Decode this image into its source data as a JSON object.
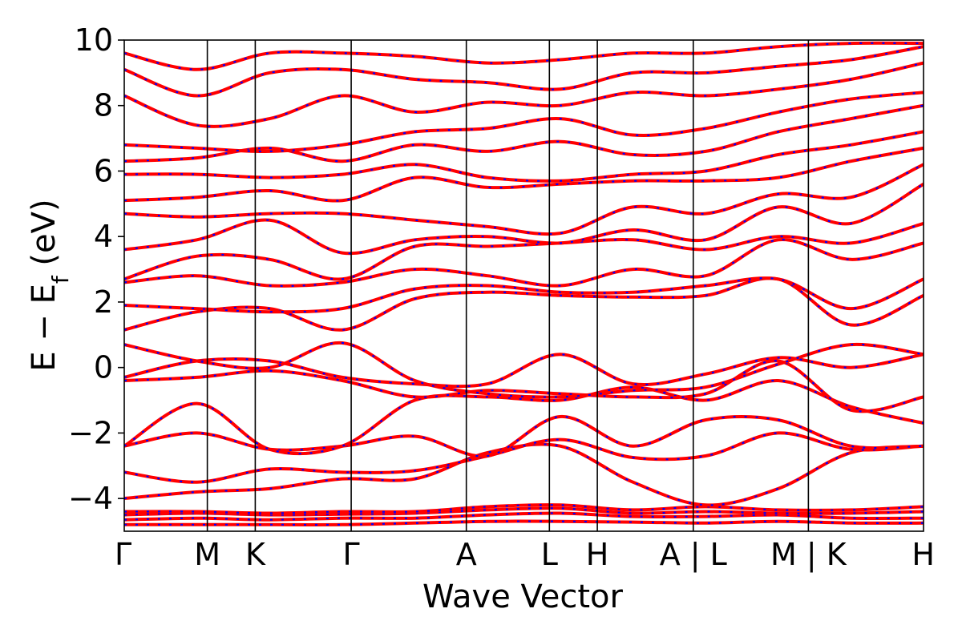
{
  "chart_data": {
    "type": "line",
    "title": "",
    "xlabel": "Wave Vector",
    "ylabel_main": "E − E",
    "ylabel_sub": "f",
    "ylabel_unit": " (eV)",
    "ylim": [
      -5,
      10
    ],
    "yticks": [
      {
        "value": -4,
        "label": "−4"
      },
      {
        "value": -2,
        "label": "−2"
      },
      {
        "value": 0,
        "label": "0"
      },
      {
        "value": 2,
        "label": "2"
      },
      {
        "value": 4,
        "label": "4"
      },
      {
        "value": 6,
        "label": "6"
      },
      {
        "value": 8,
        "label": "8"
      },
      {
        "value": 10,
        "label": "10"
      }
    ],
    "kpoints": [
      {
        "label": "Γ",
        "pos": 0.0
      },
      {
        "label": "M",
        "pos": 1.0
      },
      {
        "label": "K",
        "pos": 1.577
      },
      {
        "label": "Γ",
        "pos": 2.732
      },
      {
        "label": "A",
        "pos": 4.118
      },
      {
        "label": "L",
        "pos": 5.118
      },
      {
        "label": "H",
        "pos": 5.695
      },
      {
        "label": "A | L",
        "pos": 6.85
      },
      {
        "label": "M | K",
        "pos": 8.236
      },
      {
        "label": "H",
        "pos": 9.622
      }
    ],
    "grid": false,
    "series_colors": [
      "#ff0000",
      "#0000ff"
    ],
    "series_styles": [
      "solid",
      "dashed"
    ],
    "bands": [
      [
        -4.8,
        -4.8,
        -4.8,
        -4.8,
        -4.75,
        -4.7,
        -4.7,
        -4.72,
        -4.75,
        -4.7,
        -4.75,
        -4.75
      ],
      [
        -4.65,
        -4.6,
        -4.65,
        -4.6,
        -4.6,
        -4.5,
        -4.45,
        -4.55,
        -4.55,
        -4.5,
        -4.6,
        -4.6
      ],
      [
        -4.5,
        -4.45,
        -4.5,
        -4.48,
        -4.45,
        -4.35,
        -4.3,
        -4.45,
        -4.4,
        -4.45,
        -4.45,
        -4.4
      ],
      [
        -4.4,
        -4.4,
        -4.45,
        -4.4,
        -4.4,
        -4.25,
        -4.2,
        -4.35,
        -4.25,
        -4.35,
        -4.35,
        -4.25
      ],
      [
        -4.0,
        -3.8,
        -3.7,
        -3.4,
        -3.4,
        -2.6,
        -2.4,
        -3.5,
        -4.2,
        -3.7,
        -2.6,
        -2.4
      ],
      [
        -3.2,
        -3.5,
        -3.1,
        -3.2,
        -3.15,
        -2.7,
        -2.2,
        -2.75,
        -2.7,
        -2.0,
        -2.5,
        -2.4
      ],
      [
        -2.4,
        -2.0,
        -2.5,
        -2.4,
        -2.1,
        -2.7,
        -1.5,
        -2.4,
        -1.6,
        -1.6,
        -2.4,
        -2.4
      ],
      [
        -2.4,
        -1.1,
        -2.5,
        -2.4,
        -1.0,
        -0.9,
        -1.0,
        -0.6,
        -1.0,
        -0.4,
        -1.2,
        -1.7
      ],
      [
        -0.4,
        -0.3,
        -0.1,
        -0.4,
        -0.9,
        -0.7,
        -0.8,
        -0.9,
        -0.8,
        0.2,
        -1.3,
        -0.9
      ],
      [
        -0.3,
        0.2,
        0.2,
        -0.3,
        -0.5,
        -0.5,
        0.4,
        -0.5,
        -0.2,
        0.3,
        0.0,
        0.4
      ],
      [
        0.7,
        0.2,
        0.0,
        0.75,
        -0.4,
        -0.8,
        -0.9,
        -0.7,
        -0.6,
        0.1,
        0.7,
        0.4
      ],
      [
        1.15,
        1.7,
        1.8,
        1.15,
        2.1,
        2.3,
        2.2,
        2.15,
        2.2,
        2.7,
        1.3,
        2.2
      ],
      [
        1.9,
        1.8,
        1.7,
        1.8,
        2.4,
        2.5,
        2.3,
        2.3,
        2.5,
        2.7,
        1.8,
        2.7
      ],
      [
        2.6,
        2.8,
        2.5,
        2.6,
        3.0,
        2.8,
        2.5,
        3.0,
        2.8,
        3.9,
        3.3,
        3.8
      ],
      [
        2.7,
        3.4,
        3.3,
        2.7,
        3.7,
        3.7,
        3.8,
        3.9,
        3.6,
        4.0,
        3.8,
        4.4
      ],
      [
        3.6,
        3.9,
        4.5,
        3.5,
        3.9,
        4.0,
        3.8,
        4.2,
        3.9,
        4.9,
        4.4,
        5.6
      ],
      [
        4.7,
        4.6,
        4.7,
        4.7,
        4.5,
        4.3,
        4.1,
        4.9,
        4.7,
        5.3,
        5.2,
        6.2
      ],
      [
        5.1,
        5.2,
        5.4,
        5.1,
        5.8,
        5.5,
        5.6,
        5.7,
        5.7,
        5.8,
        6.3,
        6.7
      ],
      [
        5.9,
        5.9,
        5.8,
        5.9,
        6.2,
        5.8,
        5.7,
        5.9,
        6.0,
        6.5,
        6.8,
        7.2
      ],
      [
        6.3,
        6.4,
        6.7,
        6.3,
        6.8,
        6.6,
        6.9,
        6.5,
        6.6,
        7.2,
        7.6,
        8.0
      ],
      [
        6.8,
        6.7,
        6.6,
        6.8,
        7.2,
        7.3,
        7.6,
        7.1,
        7.3,
        7.8,
        8.2,
        8.4
      ],
      [
        8.3,
        7.4,
        7.6,
        8.3,
        7.8,
        8.1,
        8.0,
        8.4,
        8.3,
        8.5,
        8.8,
        9.3
      ],
      [
        9.1,
        8.3,
        9.0,
        9.1,
        8.8,
        8.7,
        8.5,
        9.0,
        9.0,
        9.2,
        9.4,
        9.8
      ],
      [
        9.6,
        9.1,
        9.6,
        9.6,
        9.5,
        9.3,
        9.4,
        9.6,
        9.6,
        9.8,
        9.9,
        9.9
      ]
    ]
  }
}
